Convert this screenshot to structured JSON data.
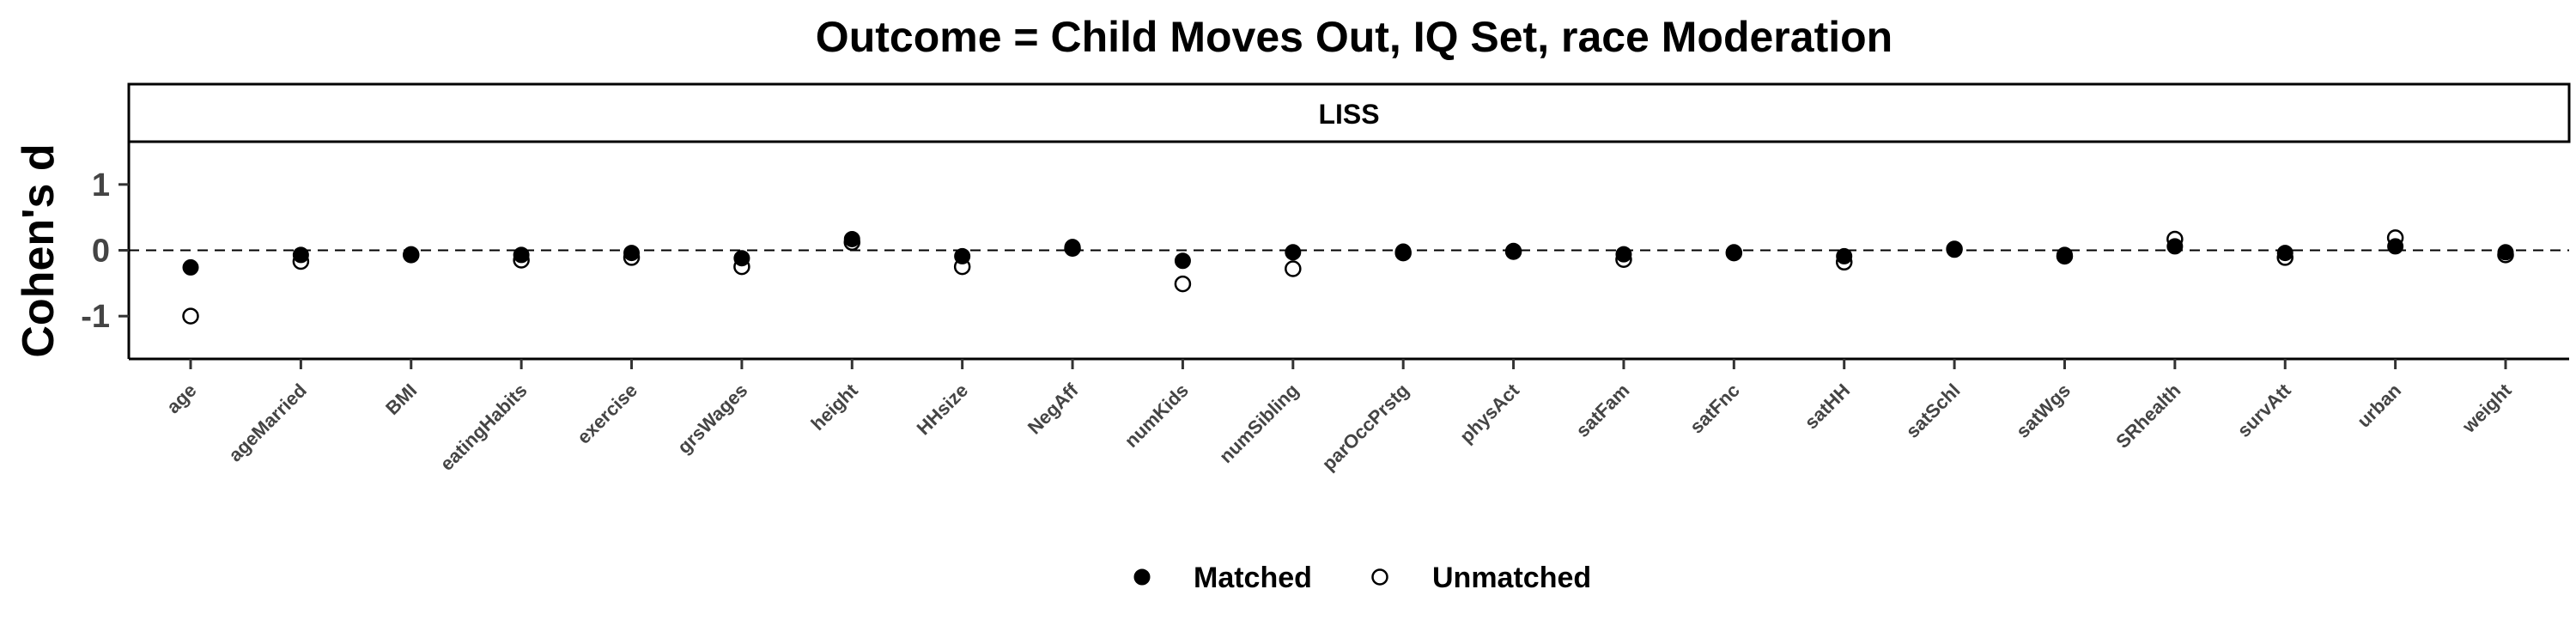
{
  "chart_data": {
    "type": "scatter",
    "title": "Outcome = Child Moves Out, IQ Set, race Moderation",
    "facet": "LISS",
    "ylabel": "Cohen's d",
    "xlabel": "",
    "ylim": [
      -1.65,
      1.65
    ],
    "yticks": [
      1,
      0,
      -1
    ],
    "reference_line": 0,
    "categories": [
      "age",
      "ageMarried",
      "BMI",
      "eatingHabits",
      "exercise",
      "grsWages",
      "height",
      "HHsize",
      "NegAff",
      "numKids",
      "numSibling",
      "parOccPrstg",
      "physAct",
      "satFam",
      "satFnc",
      "satHH",
      "satSchl",
      "satWgs",
      "SRhealth",
      "survAtt",
      "urban",
      "weight"
    ],
    "series": [
      {
        "name": "Matched",
        "marker": "filled-circle",
        "color": "#000000",
        "values": [
          -0.26,
          -0.07,
          -0.06,
          -0.07,
          -0.04,
          -0.12,
          0.17,
          -0.09,
          0.05,
          -0.16,
          -0.03,
          -0.02,
          -0.01,
          -0.06,
          -0.03,
          -0.09,
          0.01,
          -0.07,
          0.06,
          -0.04,
          0.06,
          -0.03
        ]
      },
      {
        "name": "Unmatched",
        "marker": "open-circle",
        "color": "#000000",
        "values": [
          -1.0,
          -0.17,
          -0.07,
          -0.15,
          -0.11,
          -0.25,
          0.12,
          -0.25,
          0.03,
          -0.51,
          -0.28,
          -0.04,
          -0.02,
          -0.14,
          -0.04,
          -0.18,
          0.02,
          -0.09,
          0.17,
          -0.11,
          0.19,
          -0.07
        ]
      }
    ],
    "legend_position": "bottom"
  }
}
